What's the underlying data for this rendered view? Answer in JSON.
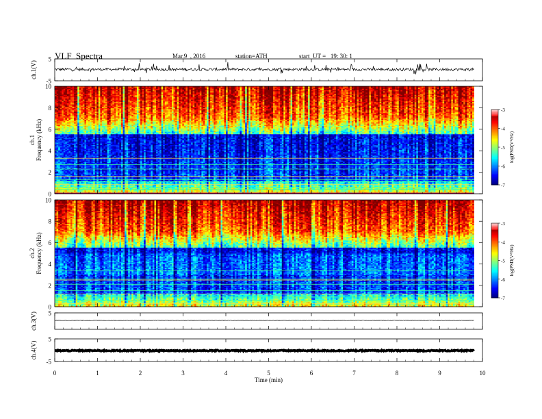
{
  "header": {
    "title": "VLF  Spectra",
    "date": "Mar.9  , 2016",
    "station": "station=ATH",
    "start": "start  UT =   19: 30: 1"
  },
  "chart_data": [
    {
      "type": "line",
      "panel": "ch1-waveform",
      "ylabel": "ch.1(V)",
      "ylim": [
        -5,
        5
      ],
      "yticks": [
        "5",
        "-5"
      ],
      "xlim": [
        0,
        10
      ]
    },
    {
      "type": "heatmap",
      "panel": "ch1-spectrogram",
      "ylabel_line1": "ch.1",
      "ylabel_line2": "Frequency  (kHz)",
      "ylim": [
        0,
        10
      ],
      "yticks": [
        "0",
        "2",
        "4",
        "6",
        "8",
        "10"
      ],
      "xlim": [
        0,
        9.8
      ],
      "colorbar": {
        "label": "log(PSD(V²/Hz)",
        "range": [
          -7,
          -3
        ],
        "ticks": [
          "-3",
          "-4",
          "-5",
          "-6",
          "-7"
        ]
      }
    },
    {
      "type": "heatmap",
      "panel": "ch2-spectrogram",
      "ylabel_line1": "ch.2",
      "ylabel_line2": "Frequency  (kHz)",
      "ylim": [
        0,
        10
      ],
      "yticks": [
        "0",
        "2",
        "4",
        "6",
        "8",
        "10"
      ],
      "xlim": [
        0,
        9.8
      ],
      "colorbar": {
        "label": "log(PSD(V²/Hz)",
        "range": [
          -7,
          -3
        ],
        "ticks": [
          "-3",
          "-4",
          "-5",
          "-6",
          "-7"
        ]
      }
    },
    {
      "type": "line",
      "panel": "ch3-waveform",
      "ylabel": "ch.3(V)",
      "ylim": [
        -5,
        5
      ],
      "yticks": [
        "5"
      ],
      "xlim": [
        0,
        10
      ]
    },
    {
      "type": "line",
      "panel": "ch4-waveform",
      "ylabel": "ch.4(V)",
      "ylim": [
        -5,
        5
      ],
      "yticks": [
        "5",
        "-5"
      ],
      "xlim": [
        0,
        10
      ]
    }
  ],
  "xaxis": {
    "label": "Time  (min)",
    "range": [
      0,
      10
    ],
    "ticks": [
      "0",
      "1",
      "2",
      "3",
      "4",
      "5",
      "6",
      "7",
      "8",
      "9",
      "10"
    ]
  }
}
